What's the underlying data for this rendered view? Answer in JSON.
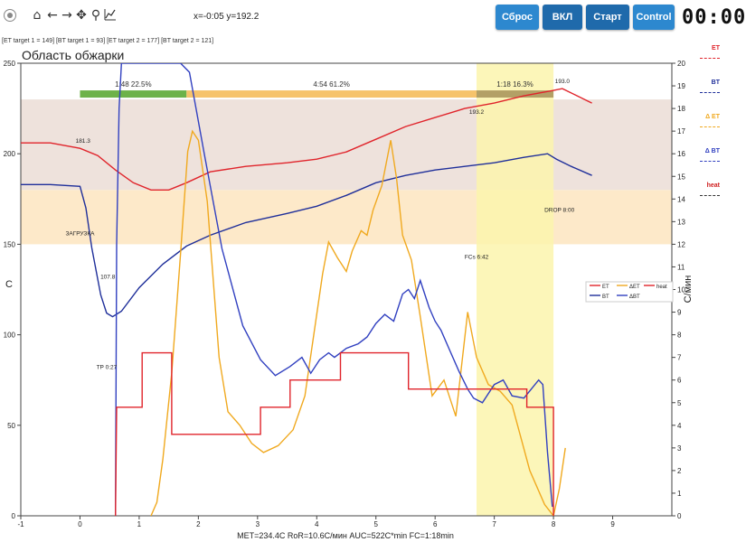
{
  "toolbar": {
    "icons": [
      "home-icon",
      "back-arrow-icon",
      "forward-arrow-icon",
      "move-icon",
      "zoom-icon",
      "chart-icon"
    ],
    "coords": "x=-0:05 y=192.2",
    "buttons": {
      "reset": "Сброс",
      "on": "ВКЛ",
      "start": "Старт",
      "control": "Control"
    },
    "timer": "00:00"
  },
  "targets_text": "[ET target 1 = 149] [BT target 1 = 93] [ET target 2 = 177] [BT target 2 = 121]",
  "side_legend": [
    {
      "label": "ET",
      "color": "#e0242b"
    },
    {
      "label": "BT",
      "color": "#1f2f9a"
    },
    {
      "label": "Δ ET",
      "color": "#f0a91f"
    },
    {
      "label": "Δ BT",
      "color": "#3140c0"
    },
    {
      "label": "heat",
      "color": "#cf1f1f"
    }
  ],
  "chart_data": {
    "type": "line",
    "title": "Область обжарки",
    "ylabel": "C",
    "y2label": "C/мин",
    "xlim": [
      -1,
      10
    ],
    "ylim": [
      0,
      250
    ],
    "y2lim": [
      0,
      20
    ],
    "xticks": [
      -1,
      0,
      1,
      2,
      3,
      4,
      5,
      6,
      7,
      8,
      9
    ],
    "yticks": [
      0,
      50,
      100,
      150,
      200,
      250
    ],
    "y2ticks": [
      0,
      1,
      2,
      3,
      4,
      5,
      6,
      7,
      8,
      9,
      10,
      11,
      12,
      13,
      14,
      15,
      16,
      17,
      18,
      19,
      20
    ],
    "bands": [
      {
        "from": 150,
        "to": 180,
        "color": "#fde9c9"
      },
      {
        "from": 180,
        "to": 230,
        "color": "#eee2dc"
      }
    ],
    "development_region": {
      "from": 6.7,
      "to": 8.0,
      "color": "#fbf5ad"
    },
    "phases": [
      {
        "from": 0,
        "to": 1.8,
        "color": "#6db24a",
        "label": "1:48  22.5%"
      },
      {
        "from": 1.8,
        "to": 6.7,
        "color": "#f6c36b",
        "label": "4:54  61.2%"
      },
      {
        "from": 6.7,
        "to": 8.0,
        "color": "#b3a066",
        "label": "1:18  16.3%"
      }
    ],
    "series": [
      {
        "name": "ET",
        "color": "#e0242b",
        "axis": "left",
        "values": [
          [
            -1,
            206
          ],
          [
            -0.5,
            206
          ],
          [
            0,
            203
          ],
          [
            0.3,
            199
          ],
          [
            0.6,
            191
          ],
          [
            0.9,
            184
          ],
          [
            1.2,
            180
          ],
          [
            1.5,
            180
          ],
          [
            1.8,
            184
          ],
          [
            2.2,
            190
          ],
          [
            2.8,
            193
          ],
          [
            3.5,
            195
          ],
          [
            4,
            197
          ],
          [
            4.5,
            201
          ],
          [
            5,
            208
          ],
          [
            5.5,
            215
          ],
          [
            6,
            220
          ],
          [
            6.5,
            225
          ],
          [
            7,
            228
          ],
          [
            7.5,
            232
          ],
          [
            8.0,
            235
          ],
          [
            8.15,
            236
          ],
          [
            8.4,
            232
          ],
          [
            8.65,
            228
          ]
        ]
      },
      {
        "name": "BT",
        "color": "#1f2f9a",
        "axis": "left",
        "values": [
          [
            -1,
            183
          ],
          [
            -0.5,
            183
          ],
          [
            0,
            182
          ],
          [
            0.1,
            170
          ],
          [
            0.2,
            148
          ],
          [
            0.35,
            122
          ],
          [
            0.45,
            112
          ],
          [
            0.55,
            110
          ],
          [
            0.7,
            113
          ],
          [
            1.0,
            126
          ],
          [
            1.4,
            139
          ],
          [
            1.8,
            149
          ],
          [
            2.2,
            155
          ],
          [
            2.8,
            162
          ],
          [
            3.5,
            167
          ],
          [
            4,
            171
          ],
          [
            4.5,
            177
          ],
          [
            5,
            184
          ],
          [
            5.5,
            188
          ],
          [
            6,
            191
          ],
          [
            6.5,
            193
          ],
          [
            7,
            195
          ],
          [
            7.5,
            198
          ],
          [
            7.9,
            200
          ],
          [
            8.05,
            197
          ],
          [
            8.3,
            193
          ],
          [
            8.65,
            188
          ]
        ]
      },
      {
        "name": "ΔET",
        "color": "#f0a91f",
        "axis": "right",
        "values": [
          [
            1.2,
            0
          ],
          [
            1.3,
            0.6
          ],
          [
            1.4,
            2.5
          ],
          [
            1.55,
            6.3
          ],
          [
            1.7,
            11.6
          ],
          [
            1.82,
            16.1
          ],
          [
            1.9,
            17.0
          ],
          [
            2.0,
            16.6
          ],
          [
            2.15,
            13.9
          ],
          [
            2.35,
            7.0
          ],
          [
            2.5,
            4.6
          ],
          [
            2.7,
            4.0
          ],
          [
            2.9,
            3.2
          ],
          [
            3.1,
            2.8
          ],
          [
            3.35,
            3.1
          ],
          [
            3.6,
            3.8
          ],
          [
            3.8,
            5.3
          ],
          [
            3.95,
            8.0
          ],
          [
            4.1,
            10.7
          ],
          [
            4.2,
            12.1
          ],
          [
            4.35,
            11.4
          ],
          [
            4.5,
            10.8
          ],
          [
            4.6,
            11.7
          ],
          [
            4.75,
            12.6
          ],
          [
            4.85,
            12.4
          ],
          [
            4.95,
            13.5
          ],
          [
            5.1,
            14.6
          ],
          [
            5.25,
            16.6
          ],
          [
            5.35,
            14.9
          ],
          [
            5.45,
            12.4
          ],
          [
            5.6,
            11.3
          ],
          [
            5.75,
            8.8
          ],
          [
            5.95,
            5.3
          ],
          [
            6.15,
            6.0
          ],
          [
            6.35,
            4.4
          ],
          [
            6.55,
            9.0
          ],
          [
            6.7,
            7.0
          ],
          [
            6.9,
            5.8
          ],
          [
            7.1,
            5.5
          ],
          [
            7.3,
            4.9
          ],
          [
            7.6,
            2.0
          ],
          [
            7.85,
            0.5
          ],
          [
            8.0,
            0
          ],
          [
            8.1,
            1.2
          ],
          [
            8.2,
            3.0
          ]
        ]
      },
      {
        "name": "ΔBT",
        "color": "#3140c0",
        "axis": "right",
        "values": [
          [
            0.6,
            0
          ],
          [
            0.62,
            12.0
          ],
          [
            0.66,
            18.0
          ],
          [
            0.7,
            20.0
          ],
          [
            1.7,
            20.0
          ],
          [
            1.85,
            19.6
          ],
          [
            2.1,
            16.0
          ],
          [
            2.4,
            11.8
          ],
          [
            2.75,
            8.4
          ],
          [
            3.05,
            6.9
          ],
          [
            3.3,
            6.2
          ],
          [
            3.55,
            6.6
          ],
          [
            3.75,
            7.0
          ],
          [
            3.9,
            6.3
          ],
          [
            4.05,
            6.9
          ],
          [
            4.2,
            7.2
          ],
          [
            4.3,
            7.0
          ],
          [
            4.5,
            7.4
          ],
          [
            4.7,
            7.6
          ],
          [
            4.85,
            7.9
          ],
          [
            5.0,
            8.5
          ],
          [
            5.15,
            8.9
          ],
          [
            5.3,
            8.6
          ],
          [
            5.45,
            9.8
          ],
          [
            5.55,
            10.0
          ],
          [
            5.65,
            9.6
          ],
          [
            5.75,
            10.4
          ],
          [
            5.9,
            9.2
          ],
          [
            6.0,
            8.6
          ],
          [
            6.1,
            8.2
          ],
          [
            6.25,
            7.3
          ],
          [
            6.4,
            6.4
          ],
          [
            6.55,
            5.6
          ],
          [
            6.65,
            5.2
          ],
          [
            6.8,
            5.0
          ],
          [
            7.0,
            5.8
          ],
          [
            7.15,
            6.0
          ],
          [
            7.3,
            5.3
          ],
          [
            7.5,
            5.2
          ],
          [
            7.75,
            6.0
          ],
          [
            7.82,
            5.8
          ],
          [
            7.9,
            2.8
          ],
          [
            7.98,
            0.4
          ]
        ]
      },
      {
        "name": "heat",
        "color": "#e0242b",
        "axis": "left",
        "step": true,
        "values": [
          [
            0.6,
            0
          ],
          [
            0.62,
            60
          ],
          [
            1.05,
            60
          ],
          [
            1.05,
            90
          ],
          [
            1.55,
            90
          ],
          [
            1.55,
            45
          ],
          [
            3.05,
            45
          ],
          [
            3.05,
            60
          ],
          [
            3.55,
            60
          ],
          [
            3.55,
            75
          ],
          [
            4.4,
            75
          ],
          [
            4.4,
            90
          ],
          [
            5.55,
            90
          ],
          [
            5.55,
            70
          ],
          [
            7.55,
            70
          ],
          [
            7.55,
            60
          ],
          [
            8.0,
            60
          ],
          [
            8.0,
            0
          ]
        ]
      }
    ],
    "annotations": [
      {
        "text": "181.3",
        "x": 0.05,
        "y": 206
      },
      {
        "text": "ЗАГРУЗКА",
        "x": 0.0,
        "y": 155
      },
      {
        "text": "107.8",
        "x": 0.47,
        "y": 131
      },
      {
        "text": "TP 0:27",
        "x": 0.45,
        "y": 81
      },
      {
        "text": "193.2",
        "x": 6.7,
        "y": 222
      },
      {
        "text": "FCs 6:42",
        "x": 6.7,
        "y": 142
      },
      {
        "text": "193.0",
        "x": 8.15,
        "y": 239
      },
      {
        "text": "DROP 8:00",
        "x": 8.1,
        "y": 168
      }
    ],
    "inner_legend": [
      "ET",
      "BT",
      "ΔET",
      "ΔBT",
      "heat"
    ],
    "footer": "MET=234.4C  RoR=10.6C/мин  AUC=522C*min  FC=1:18min"
  }
}
